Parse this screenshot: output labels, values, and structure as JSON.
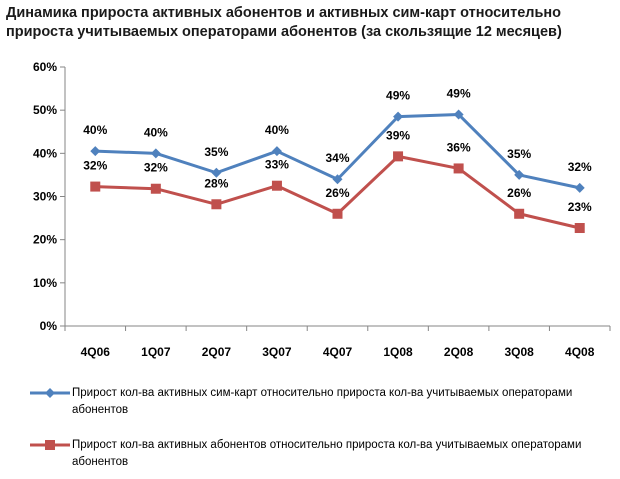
{
  "chart_data": {
    "type": "line",
    "title": "Динамика прироста активных абонентов и активных сим-карт относительно прироста учитываемых операторами абонентов (за скользящие 12 месяцев)",
    "categories": [
      "4Q06",
      "1Q07",
      "2Q07",
      "3Q07",
      "4Q07",
      "1Q08",
      "2Q08",
      "3Q08",
      "4Q08"
    ],
    "ylim": [
      0,
      60
    ],
    "yticks": [
      0,
      10,
      20,
      30,
      40,
      50,
      60
    ],
    "ytick_labels": [
      "0%",
      "10%",
      "20%",
      "30%",
      "40%",
      "50%",
      "60%"
    ],
    "grid": false,
    "legend_position": "bottom",
    "series": [
      {
        "name": "Прирост кол-ва активных сим-карт относительно прироста кол-ва учитываемых операторами абонентов",
        "color": "#4f81bd",
        "marker": "diamond",
        "values": [
          40.5,
          40,
          35.5,
          40.5,
          34,
          48.5,
          49,
          35,
          32
        ],
        "labels": [
          "40%",
          "40%",
          "35%",
          "40%",
          "34%",
          "49%",
          "49%",
          "35%",
          "32%"
        ]
      },
      {
        "name": "Прирост кол-ва активных абонентов относительно прироста кол-ва учитываемых операторами абонентов",
        "color": "#c0504d",
        "marker": "square",
        "values": [
          32.3,
          31.8,
          28.2,
          32.5,
          26,
          39.3,
          36.5,
          26,
          22.7
        ],
        "labels": [
          "32%",
          "32%",
          "28%",
          "33%",
          "26%",
          "39%",
          "36%",
          "26%",
          "23%"
        ]
      }
    ]
  }
}
